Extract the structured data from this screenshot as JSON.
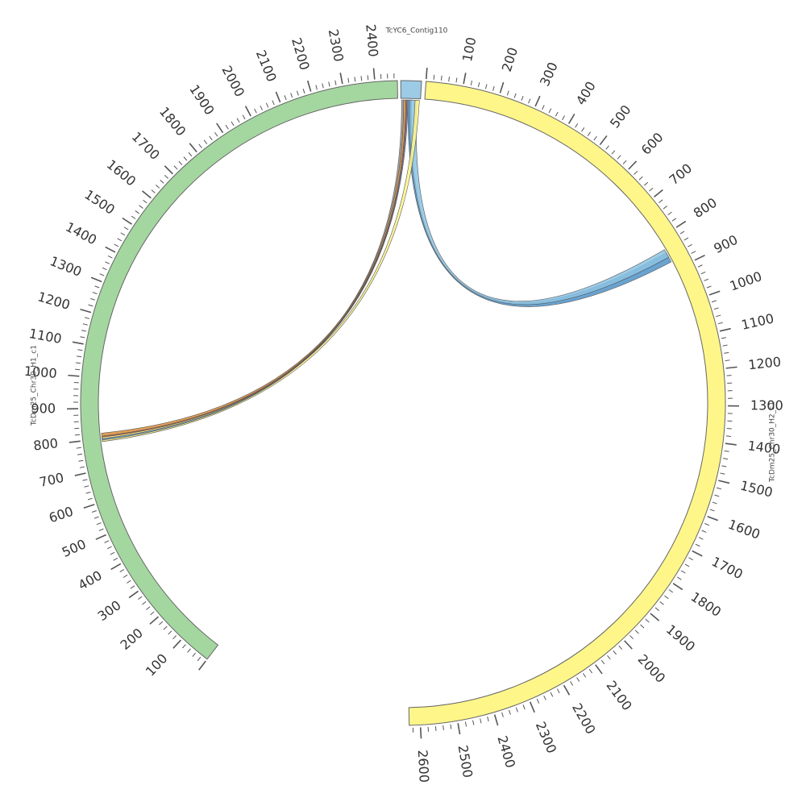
{
  "chart_data": {
    "type": "chord",
    "segments": [
      {
        "id": "h1",
        "label": "TcDm25_Chr30_H1_c1",
        "length": 2470,
        "color": "#a4d7a0",
        "tick_labels_from": 100,
        "tick_labels_to": 2400,
        "tick_label_step": 100,
        "minor_step": 20
      },
      {
        "id": "contig",
        "label": "TcYC6_Contig110",
        "length": 55,
        "color": "#9ccbe6",
        "tick_labels_from": 0,
        "tick_labels_to": 0,
        "tick_label_step": 100,
        "minor_step": 0
      },
      {
        "id": "h2",
        "label": "TcDm25_Chr30_H2_c1",
        "length": 2630,
        "color": "#fff68a",
        "tick_labels_from": 100,
        "tick_labels_to": 2600,
        "tick_label_step": 100,
        "minor_step": 20
      }
    ],
    "links": [
      {
        "color": "#4f93c9",
        "a": {
          "seg": "contig",
          "start": 20,
          "end": 30
        },
        "b": {
          "seg": "h2",
          "start": 845,
          "end": 875
        }
      },
      {
        "color": "#8cc3e3",
        "a": {
          "seg": "contig",
          "start": 25,
          "end": 45
        },
        "b": {
          "seg": "h2",
          "start": 835,
          "end": 860
        }
      },
      {
        "color": "#999999",
        "a": {
          "seg": "contig",
          "start": 2,
          "end": 8
        },
        "b": {
          "seg": "h1",
          "start": 790,
          "end": 805
        }
      },
      {
        "color": "#d98c3c",
        "a": {
          "seg": "contig",
          "start": 8,
          "end": 14
        },
        "b": {
          "seg": "h1",
          "start": 805,
          "end": 818
        }
      },
      {
        "color": "#d9603c",
        "a": {
          "seg": "contig",
          "start": 14,
          "end": 17
        },
        "b": {
          "seg": "h1",
          "start": 800,
          "end": 808
        }
      },
      {
        "color": "#fff68a",
        "a": {
          "seg": "contig",
          "start": 40,
          "end": 52
        },
        "b": {
          "seg": "h1",
          "start": 790,
          "end": 805
        }
      },
      {
        "color": "#5b8cc4",
        "a": {
          "seg": "contig",
          "start": 17,
          "end": 20
        },
        "b": {
          "seg": "h1",
          "start": 795,
          "end": 800
        }
      }
    ]
  }
}
